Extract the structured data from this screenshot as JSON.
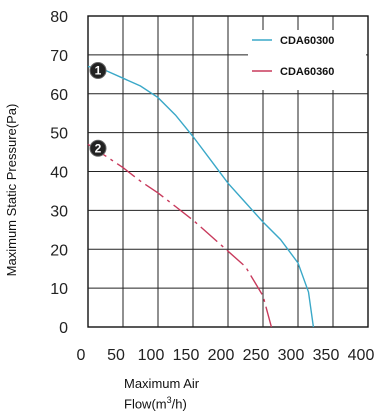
{
  "chart_data": {
    "type": "line",
    "xlabel_line1": "Maximum Air",
    "xlabel_line2": "Flow(m",
    "xlabel_sup": "3",
    "xlabel_line2_end": "/h)",
    "ylabel": "Maximum Static Pressure(Pa)",
    "xlim": [
      0,
      400
    ],
    "ylim": [
      0,
      80
    ],
    "x_ticks": [
      0,
      50,
      100,
      150,
      200,
      250,
      300,
      350,
      400
    ],
    "y_ticks": [
      0,
      10,
      20,
      30,
      40,
      50,
      60,
      70,
      80
    ],
    "grid": true,
    "legend_position": "top-right",
    "series": [
      {
        "name": "CDA60300",
        "marker": "1",
        "color": "#3aa8c8",
        "dash": "solid",
        "points": [
          [
            0,
            67
          ],
          [
            25,
            66
          ],
          [
            50,
            64
          ],
          [
            75,
            62
          ],
          [
            100,
            59
          ],
          [
            125,
            54.5
          ],
          [
            150,
            49
          ],
          [
            175,
            43
          ],
          [
            200,
            37
          ],
          [
            225,
            32
          ],
          [
            250,
            27
          ],
          [
            275,
            22.5
          ],
          [
            300,
            16.5
          ],
          [
            315,
            9
          ],
          [
            322,
            0
          ]
        ]
      },
      {
        "name": "CDA60360",
        "marker": "2",
        "color": "#c83a5c",
        "dash": "dashed",
        "points": [
          [
            0,
            47
          ],
          [
            25,
            44
          ],
          [
            50,
            41
          ],
          [
            75,
            37.5
          ],
          [
            100,
            34.5
          ],
          [
            125,
            31
          ],
          [
            150,
            27.5
          ],
          [
            175,
            23.5
          ],
          [
            200,
            19.5
          ],
          [
            225,
            15.5
          ],
          [
            250,
            8
          ],
          [
            262,
            0
          ]
        ]
      }
    ]
  }
}
